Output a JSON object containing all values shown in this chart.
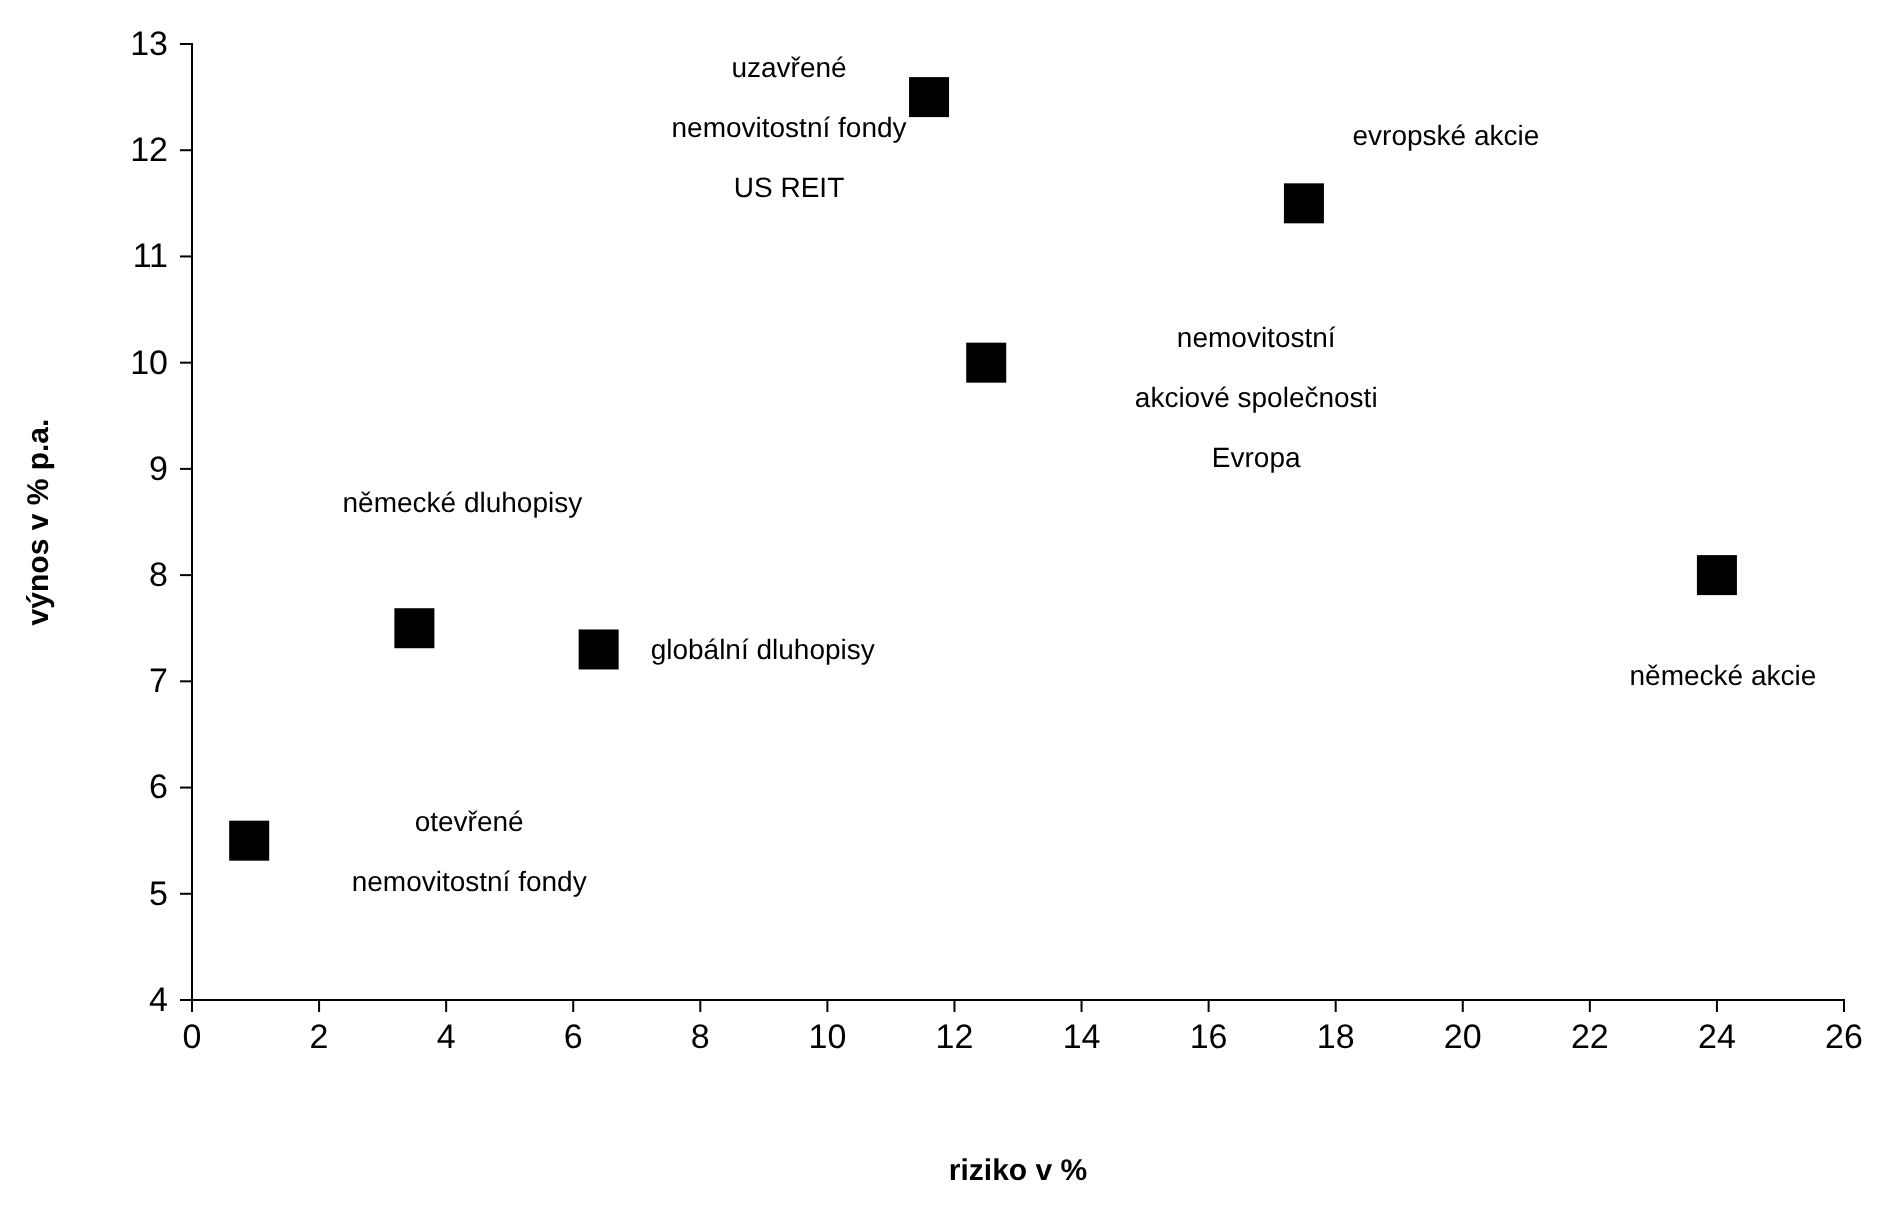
{
  "chart_data": {
    "type": "scatter",
    "xlabel": "riziko v %",
    "ylabel": "výnos v % p.a.",
    "x": [
      0.9,
      3.5,
      6.4,
      11.6,
      12.5,
      17.5,
      24
    ],
    "values": [
      5.5,
      7.5,
      7.3,
      12.5,
      10,
      11.5,
      8
    ],
    "color": "#000000",
    "marker": "square",
    "grid": false,
    "xlim": [
      0,
      26
    ],
    "xticks": [
      0,
      2,
      4,
      6,
      8,
      10,
      12,
      14,
      16,
      18,
      20,
      22,
      24,
      26
    ],
    "ylim": [
      4,
      13
    ],
    "yticks": [
      4,
      5,
      6,
      7,
      8,
      9,
      10,
      11,
      12,
      13
    ],
    "annotations": [
      "otevřené\nnemovitostní fondy",
      "německé dluhopisy",
      {
        "text": "globální dluhopisy",
        "x": 6.4,
        "y": 7.3
      },
      {
        "text": "uzavřené\nnemovitostní fondy\nUS REIT",
        "x": 11.6,
        "y": 12.5
      },
      "nemovitostní\nakciové společnosti\nEvropa",
      {
        "text": "evropské akcie",
        "x": 17.5,
        "y": 11.5
      },
      {
        "text": "německé akcie",
        "x": 24,
        "y": 8
      }
    ]
  }
}
